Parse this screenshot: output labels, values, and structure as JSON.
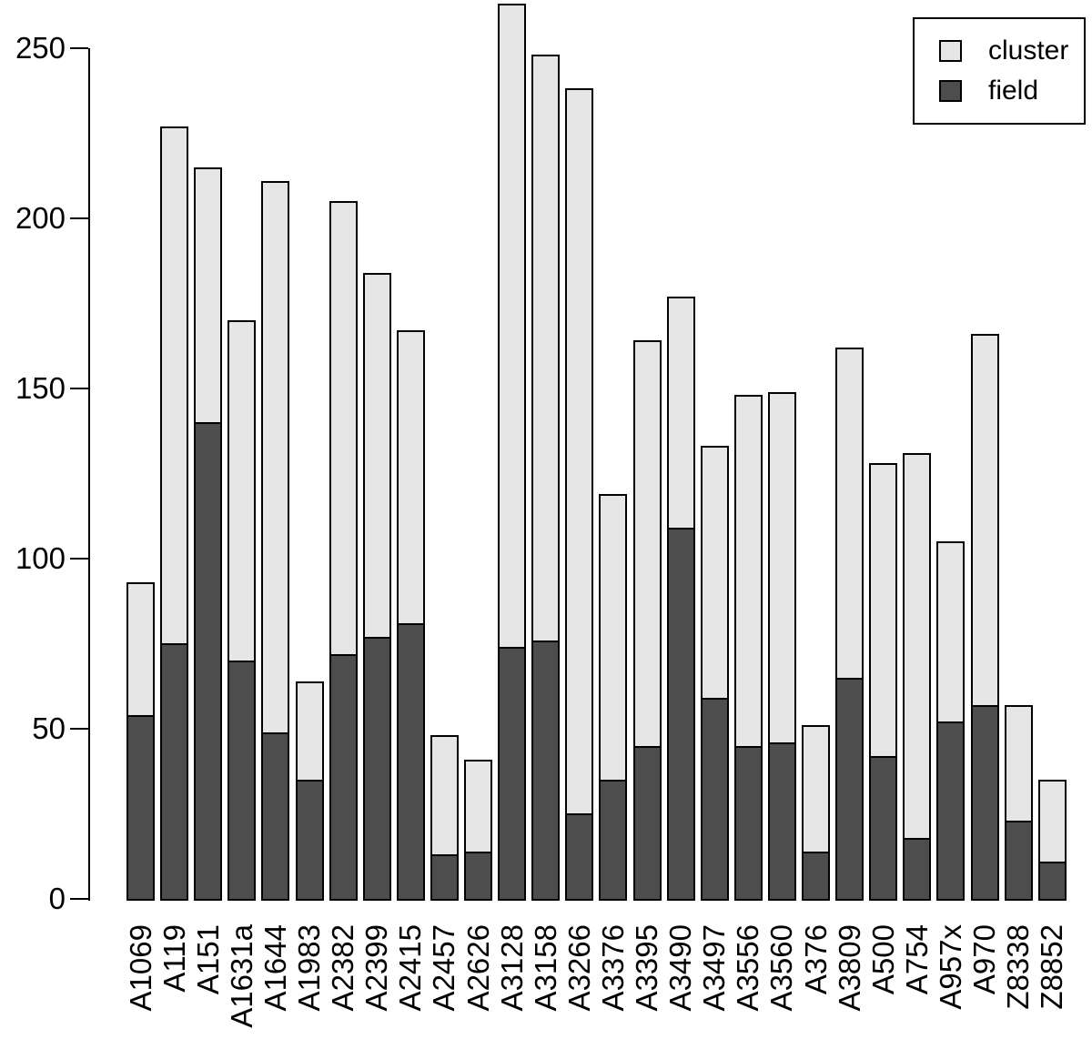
{
  "chart_data": {
    "type": "bar",
    "stacked": true,
    "title": "",
    "xlabel": "",
    "ylabel": "",
    "categories": [
      "A1069",
      "A119",
      "A151",
      "A1631a",
      "A1644",
      "A1983",
      "A2382",
      "A2399",
      "A2415",
      "A2457",
      "A2626",
      "A3128",
      "A3158",
      "A3266",
      "A3376",
      "A3395",
      "A3490",
      "A3497",
      "A3556",
      "A3560",
      "A376",
      "A3809",
      "A500",
      "A754",
      "A957x",
      "A970",
      "Z8338",
      "Z8852"
    ],
    "series": [
      {
        "name": "field",
        "color": "#4D4D4D",
        "values": [
          54,
          75,
          140,
          70,
          49,
          35,
          72,
          77,
          81,
          13,
          14,
          74,
          76,
          25,
          35,
          45,
          109,
          59,
          45,
          46,
          14,
          65,
          42,
          18,
          52,
          57,
          23,
          11
        ]
      },
      {
        "name": "cluster",
        "color": "#E6E6E6",
        "values": [
          39,
          152,
          75,
          100,
          162,
          29,
          133,
          107,
          86,
          35,
          27,
          189,
          172,
          213,
          84,
          119,
          68,
          74,
          103,
          103,
          37,
          97,
          86,
          113,
          53,
          109,
          34,
          24
        ]
      }
    ],
    "stack_totals": [
      93,
      227,
      215,
      170,
      211,
      64,
      205,
      184,
      167,
      48,
      41,
      263,
      248,
      238,
      119,
      164,
      177,
      133,
      148,
      149,
      51,
      162,
      128,
      131,
      105,
      166,
      57,
      35
    ],
    "y_axis": {
      "ticks": [
        0,
        50,
        100,
        150,
        200,
        250
      ],
      "range": [
        0,
        264
      ],
      "grid": false
    },
    "legend": {
      "position": "top-right",
      "items": [
        {
          "label": "cluster",
          "color": "#E6E6E6"
        },
        {
          "label": "field",
          "color": "#4D4D4D"
        }
      ]
    },
    "bar_border_color": "#000000",
    "background_color": "#FFFFFF"
  }
}
